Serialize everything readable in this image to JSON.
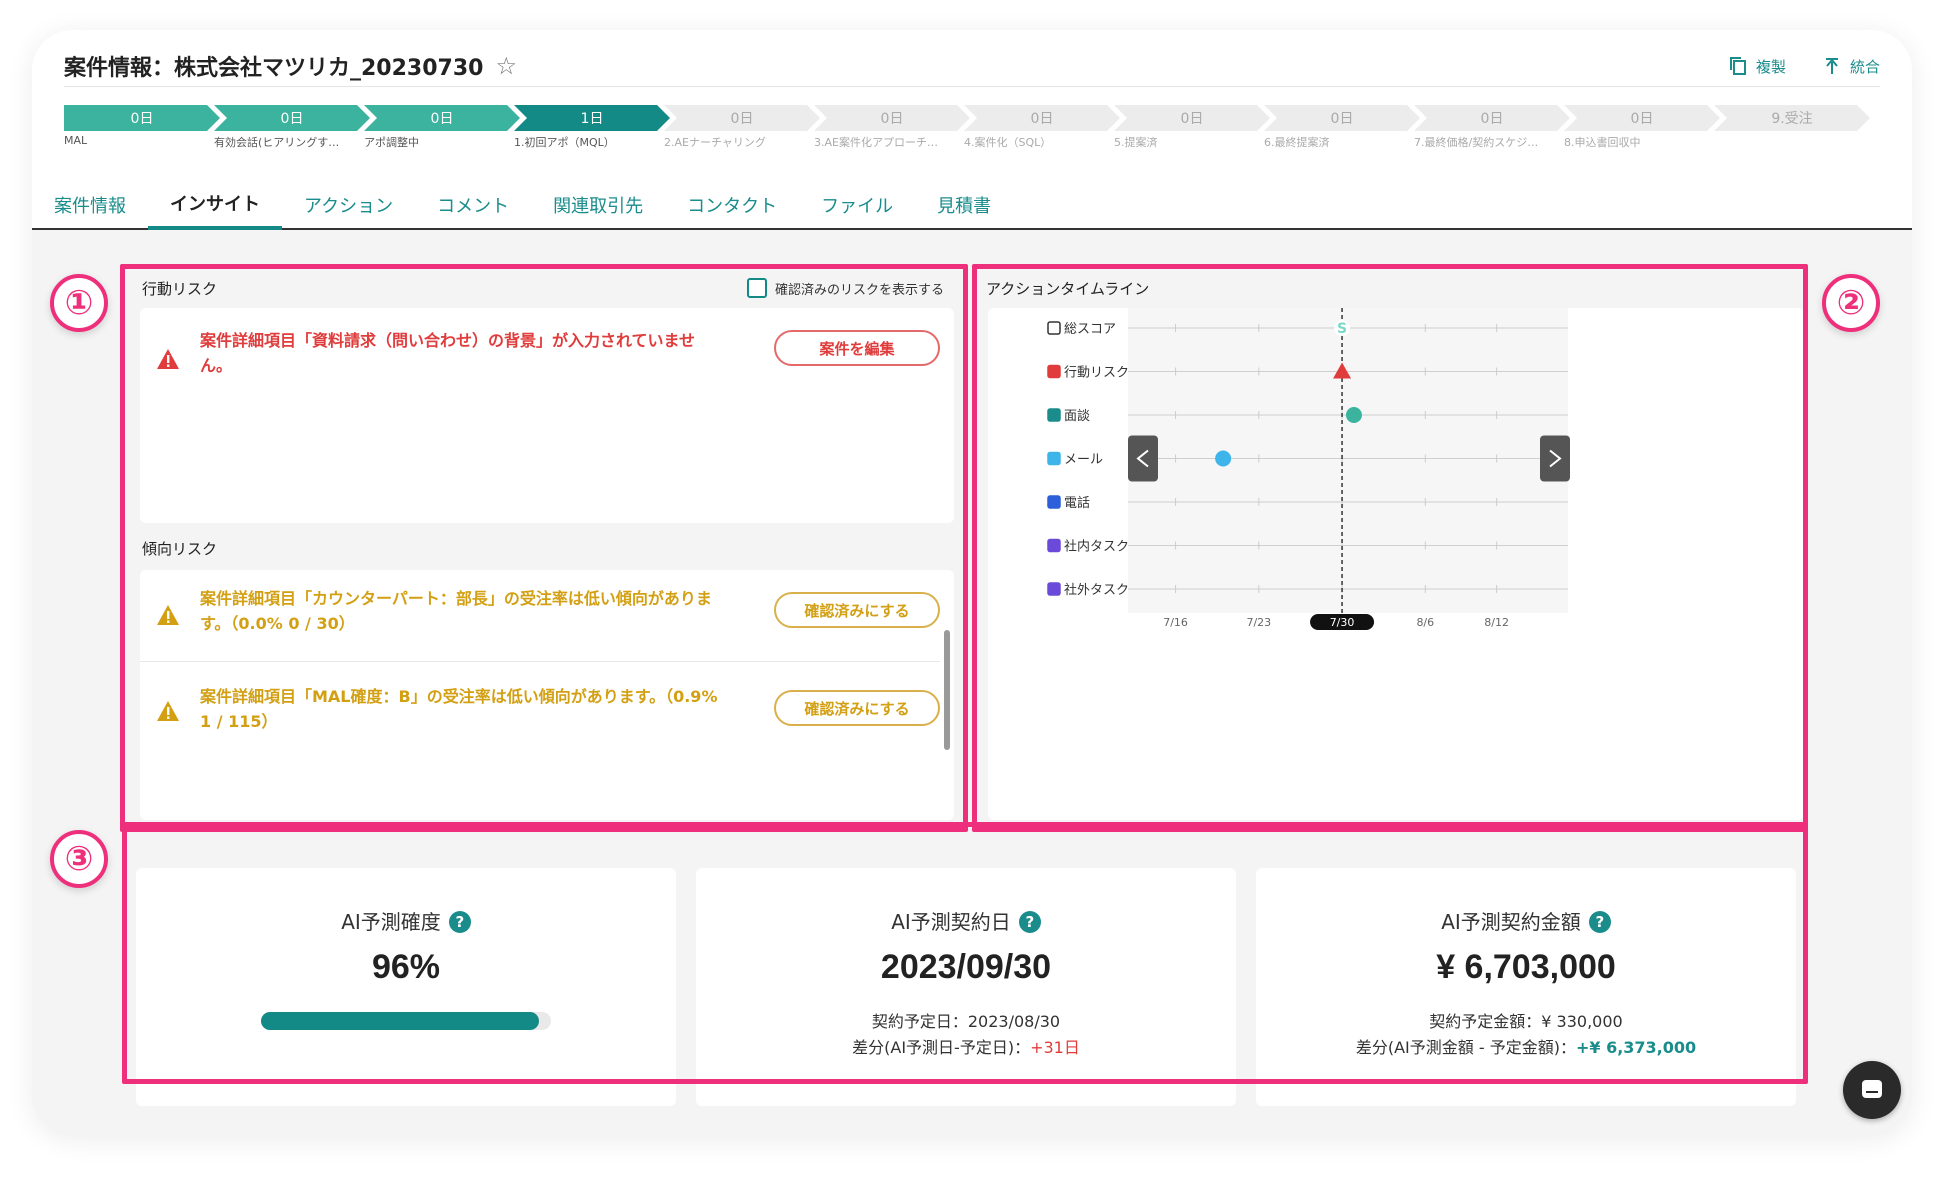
{
  "header": {
    "title": "案件情報：株式会社マツリカ_20230730",
    "actions": [
      {
        "label": "複製",
        "icon": "copy-icon"
      },
      {
        "label": "統合",
        "icon": "merge-icon"
      }
    ]
  },
  "stages": [
    {
      "days": "0日",
      "label": "MAL",
      "state": "done"
    },
    {
      "days": "0日",
      "label": "有効会話(ヒアリングす…",
      "state": "done"
    },
    {
      "days": "0日",
      "label": "アポ調整中",
      "state": "done"
    },
    {
      "days": "1日",
      "label": "1.初回アポ（MQL）",
      "state": "current"
    },
    {
      "days": "0日",
      "label": "2.AEナーチャリング",
      "state": "todo"
    },
    {
      "days": "0日",
      "label": "3.AE案件化アプローチ…",
      "state": "todo"
    },
    {
      "days": "0日",
      "label": "4.案件化（SQL）",
      "state": "todo"
    },
    {
      "days": "0日",
      "label": "5.提案済",
      "state": "todo"
    },
    {
      "days": "0日",
      "label": "6.最終提案済",
      "state": "todo"
    },
    {
      "days": "0日",
      "label": "7.最終価格/契約スケジ…",
      "state": "todo"
    },
    {
      "days": "0日",
      "label": "8.申込書回収中",
      "state": "todo"
    },
    {
      "days": "9.受注",
      "label": "",
      "state": "todo"
    }
  ],
  "tabs": [
    "案件情報",
    "インサイト",
    "アクション",
    "コメント",
    "関連取引先",
    "コンタクト",
    "ファイル",
    "見積書"
  ],
  "active_tab": "インサイト",
  "badges": [
    "①",
    "②",
    "③"
  ],
  "behavior_risk": {
    "title": "行動リスク",
    "checkbox_label": "確認済みのリスクを表示する",
    "items": [
      {
        "text_line1": "案件詳細項目「資料請求（問い合わせ）の背景」が入力されていませ",
        "text_line2": "ん。",
        "button": "案件を編集"
      }
    ]
  },
  "trend_risk": {
    "title": "傾向リスク",
    "items": [
      {
        "text_line1": "案件詳細項目「カウンターパート：部長」の受注率は低い傾向がありま",
        "text_line2": "す。（0.0% 0 / 30）",
        "button": "確認済みにする"
      },
      {
        "text_line1": "案件詳細項目「MAL確度：B」の受注率は低い傾向があります。（0.9%",
        "text_line2": "1 / 115）",
        "button": "確認済みにする"
      }
    ]
  },
  "timeline": {
    "title": "アクションタイムライン",
    "rows": [
      {
        "label": "総スコア",
        "icon": "circle-outline-icon"
      },
      {
        "label": "行動リスク",
        "icon": "warning-icon"
      },
      {
        "label": "面談",
        "icon": "briefcase-icon"
      },
      {
        "label": "メール",
        "icon": "mail-icon"
      },
      {
        "label": "電話",
        "icon": "phone-icon"
      },
      {
        "label": "社内タスク",
        "icon": "building-icon"
      },
      {
        "label": "社外タスク",
        "icon": "building-icon"
      }
    ],
    "dates": [
      "7/16",
      "7/23",
      "7/30",
      "8/6",
      "8/12"
    ],
    "current_date": "7/30",
    "score_marker": "S",
    "events": [
      {
        "row": "総スコア",
        "date": "7/30",
        "kind": "score"
      },
      {
        "row": "行動リスク",
        "date": "7/30",
        "kind": "risk"
      },
      {
        "row": "面談",
        "date": "7/31",
        "kind": "meeting"
      },
      {
        "row": "メール",
        "date": "7/20",
        "kind": "mail"
      }
    ],
    "colors": {
      "meeting": "#3bb39e",
      "mail": "#3db4ea",
      "risk": "#e03c3c",
      "score": "#7ad9c8"
    }
  },
  "kpis": [
    {
      "label": "AI予測確度",
      "value": "96%",
      "progress": 0.96
    },
    {
      "label": "AI予測契約日",
      "value": "2023/09/30",
      "sub1": "契約予定日：2023/08/30",
      "sub2_prefix": "差分(AI予測日-予定日)：",
      "sub2_value": "+31日"
    },
    {
      "label": "AI予測契約金額",
      "value": "¥ 6,703,000",
      "sub1": "契約予定金額：¥ 330,000",
      "sub2_prefix": "差分(AI予測金額 - 予定金額)：",
      "sub2_value": "+¥ 6,373,000"
    }
  ],
  "help_glyph": "?",
  "colors": {
    "accent": "#148a87",
    "highlight": "#ee2f7b",
    "risk_red": "#e03c3c",
    "risk_amber": "#d3a014"
  }
}
